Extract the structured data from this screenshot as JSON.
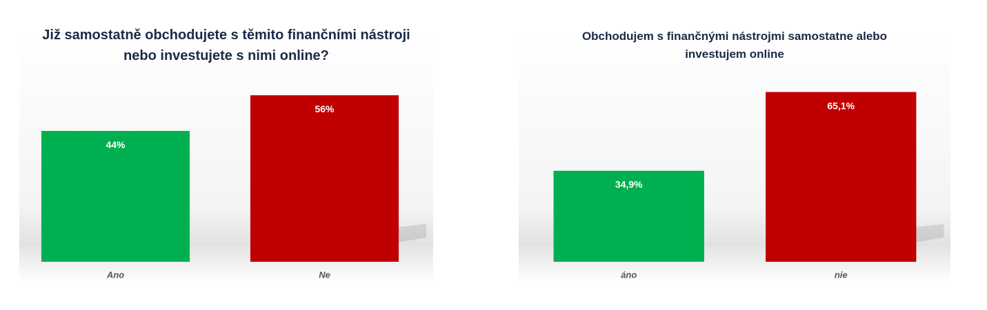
{
  "chart_data": [
    {
      "type": "bar",
      "title": "Již samostatně obchodujete s těmito finančními nástroji nebo investujete s nimi online?",
      "categories": [
        "Ano",
        "Ne"
      ],
      "values": [
        44,
        56
      ],
      "value_labels": [
        "44%",
        "56%"
      ],
      "colors": [
        "#00b050",
        "#c00000"
      ],
      "ylim": [
        0,
        60
      ]
    },
    {
      "type": "bar",
      "title": "Obchodujem s finančnými nástrojmi samostatne alebo investujem online",
      "categories": [
        "áno",
        "nie"
      ],
      "values": [
        34.9,
        65.1
      ],
      "value_labels": [
        "34,9%",
        "65,1%"
      ],
      "colors": [
        "#00b050",
        "#c00000"
      ],
      "ylim": [
        0,
        70
      ]
    }
  ]
}
